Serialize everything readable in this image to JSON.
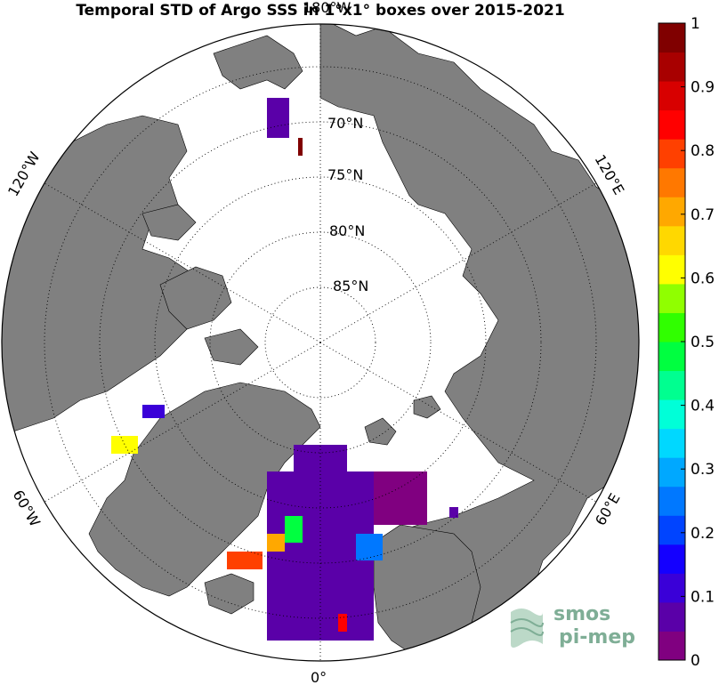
{
  "title": "Temporal STD of Argo SSS in 1°x1° boxes over 2015-2021",
  "map": {
    "projection": "north polar stereographic",
    "colors": {
      "land": "#808080",
      "ocean": "#ffffff",
      "coast": "#000000",
      "grid": "#000000"
    },
    "lat_labels": [
      "70°N",
      "75°N",
      "80°N",
      "85°N"
    ],
    "lon_labels": [
      "180°W",
      "120°W",
      "60°W",
      "0°",
      "60°E",
      "120°E"
    ]
  },
  "colorbar": {
    "min": 0,
    "max": 1,
    "tick_labels": [
      "0",
      "0.1",
      "0.2",
      "0.3",
      "0.4",
      "0.5",
      "0.6",
      "0.7",
      "0.8",
      "0.9",
      "1"
    ],
    "colors": [
      "#800080",
      "#5a00a8",
      "#3a00d8",
      "#1400ff",
      "#0044ff",
      "#0078ff",
      "#00a8ff",
      "#00d8ff",
      "#00ffd8",
      "#00ff90",
      "#00ff40",
      "#30ff00",
      "#90ff00",
      "#ffff00",
      "#ffd800",
      "#ffa800",
      "#ff7800",
      "#ff4000",
      "#ff0000",
      "#d80000",
      "#a80000",
      "#800000"
    ]
  },
  "logo": {
    "line1": "smos",
    "line2": "pi-mep"
  }
}
